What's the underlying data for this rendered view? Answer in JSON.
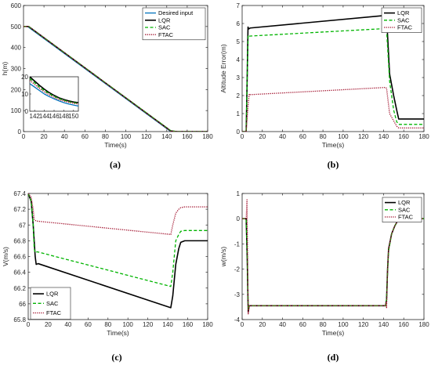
{
  "colors": {
    "desired": "#0072bd",
    "lqr": "#000000",
    "sac": "#00b400",
    "ftac": "#a2142f",
    "axis": "#262626"
  },
  "chart_data": [
    {
      "id": "a",
      "type": "line",
      "caption": "(a)",
      "xlabel": "Time(s)",
      "ylabel": "h(m)",
      "xlim": [
        0,
        180
      ],
      "ylim": [
        0,
        600
      ],
      "xticks": [
        0,
        20,
        40,
        60,
        80,
        100,
        120,
        140,
        160,
        180
      ],
      "yticks": [
        0,
        100,
        200,
        300,
        400,
        500,
        600
      ],
      "legend_position": "top-right",
      "series": [
        {
          "name": "Desired input",
          "style": "desired",
          "x": [
            0,
            4,
            144,
            147,
            180
          ],
          "y": [
            500,
            500,
            0,
            0,
            0
          ]
        },
        {
          "name": "LQR",
          "style": "lqr",
          "x": [
            0,
            5,
            144,
            150,
            180
          ],
          "y": [
            500,
            500,
            3,
            0,
            0
          ]
        },
        {
          "name": "SAC",
          "style": "sac",
          "x": [
            0,
            5,
            144,
            150,
            180
          ],
          "y": [
            500,
            500,
            4,
            0,
            0
          ]
        },
        {
          "name": "FTAC",
          "style": "ftac",
          "x": [
            0,
            5,
            144,
            150,
            180
          ],
          "y": [
            500,
            500,
            2,
            0,
            0
          ]
        }
      ],
      "inset": {
        "xlim": [
          141,
          151
        ],
        "ylim": [
          0,
          20
        ],
        "xticks": [
          142,
          144,
          146,
          148,
          150
        ],
        "yticks": [
          0,
          10,
          20
        ],
        "series": [
          {
            "style": "desired",
            "x": [
              141,
              142,
              143,
              144,
              145,
              146,
              147,
              148,
              149,
              150,
              151
            ],
            "y": [
              16,
              14,
              12,
              10,
              8.5,
              7.2,
              6,
              5,
              4.2,
              3.6,
              3
            ]
          },
          {
            "style": "lqr",
            "x": [
              141,
              142,
              143,
              144,
              145,
              146,
              147,
              148,
              149,
              150,
              151
            ],
            "y": [
              20,
              17.5,
              15,
              12.8,
              10.8,
              9.2,
              7.8,
              6.8,
              6,
              5.4,
              5
            ]
          },
          {
            "style": "sac",
            "x": [
              141,
              142,
              143,
              144,
              145,
              146,
              147,
              148,
              149,
              150,
              151
            ],
            "y": [
              19,
              16.5,
              14,
              12,
              10.2,
              8.7,
              7.4,
              6.4,
              5.6,
              5,
              4.6
            ]
          },
          {
            "style": "ftac",
            "x": [
              141,
              142,
              143,
              144,
              145,
              146,
              147,
              148,
              149,
              150,
              151
            ],
            "y": [
              18,
              15.5,
              13.2,
              11.2,
              9.5,
              8,
              6.8,
              5.9,
              5.2,
              4.6,
              4.2
            ]
          }
        ]
      }
    },
    {
      "id": "b",
      "type": "line",
      "caption": "(b)",
      "xlabel": "Time(s)",
      "ylabel": "Altitude Error(m)",
      "xlim": [
        0,
        180
      ],
      "ylim": [
        0,
        7
      ],
      "xticks": [
        0,
        20,
        40,
        60,
        80,
        100,
        120,
        140,
        160,
        180
      ],
      "yticks": [
        0,
        1,
        2,
        3,
        4,
        5,
        6,
        7
      ],
      "legend_position": "top-right",
      "series": [
        {
          "name": "LQR",
          "style": "lqr",
          "x": [
            0,
            4,
            5,
            5.8,
            6.5,
            8,
            142,
            143,
            146,
            150,
            153,
            155,
            180
          ],
          "y": [
            0,
            0,
            3,
            5.8,
            5.7,
            5.75,
            6.45,
            6.4,
            3.2,
            2,
            1.2,
            0.7,
            0.7
          ]
        },
        {
          "name": "SAC",
          "style": "sac",
          "x": [
            0,
            4,
            5,
            6,
            7,
            142,
            143,
            146,
            150,
            153,
            155,
            180
          ],
          "y": [
            0,
            0,
            3,
            5.35,
            5.3,
            5.72,
            5.65,
            2.8,
            1.2,
            0.55,
            0.4,
            0.4
          ]
        },
        {
          "name": "FTAC",
          "style": "ftac",
          "x": [
            0,
            4,
            6,
            7,
            8,
            142,
            143,
            146,
            150,
            153,
            155,
            180
          ],
          "y": [
            0,
            0,
            1.5,
            2.1,
            2.05,
            2.45,
            2.4,
            1.0,
            0.6,
            0.3,
            0.2,
            0.2
          ]
        }
      ]
    },
    {
      "id": "c",
      "type": "line",
      "caption": "(c)",
      "xlabel": "Time(s)",
      "ylabel": "V(m/s)",
      "xlim": [
        0,
        180
      ],
      "ylim": [
        65.8,
        67.4
      ],
      "xticks": [
        0,
        20,
        40,
        60,
        80,
        100,
        120,
        140,
        160,
        180
      ],
      "yticks": [
        65.8,
        66,
        66.2,
        66.4,
        66.6,
        66.8,
        67,
        67.2,
        67.4
      ],
      "ytick_labels": [
        "65.8",
        "66",
        "66.2",
        "66.4",
        "66.6",
        "66.8",
        "67",
        "67.2",
        "67.4"
      ],
      "legend_position": "bottom-left",
      "series": [
        {
          "name": "LQR",
          "style": "lqr",
          "x": [
            0,
            3,
            5,
            7,
            8,
            10,
            143,
            145,
            148,
            151,
            153,
            157,
            180
          ],
          "y": [
            67.4,
            67.3,
            67,
            66.6,
            66.5,
            66.51,
            65.95,
            66.1,
            66.5,
            66.7,
            66.78,
            66.8,
            66.8
          ]
        },
        {
          "name": "SAC",
          "style": "sac",
          "x": [
            0,
            3,
            5,
            6,
            7,
            9,
            143,
            145,
            148,
            151,
            153,
            157,
            180
          ],
          "y": [
            67.4,
            67.3,
            67,
            66.7,
            66.65,
            66.66,
            66.22,
            66.4,
            66.8,
            66.88,
            66.92,
            66.93,
            66.93
          ]
        },
        {
          "name": "FTAC",
          "style": "ftac",
          "x": [
            0,
            3,
            5,
            6,
            8,
            143,
            145,
            148,
            151,
            153,
            157,
            180
          ],
          "y": [
            67.4,
            67.35,
            67.2,
            67.07,
            67.05,
            66.88,
            67.0,
            67.15,
            67.2,
            67.22,
            67.23,
            67.23
          ]
        }
      ]
    },
    {
      "id": "d",
      "type": "line",
      "caption": "(d)",
      "xlabel": "Time(s)",
      "ylabel": "w(m/s)",
      "xlim": [
        0,
        180
      ],
      "ylim": [
        -4,
        1
      ],
      "xticks": [
        0,
        20,
        40,
        60,
        80,
        100,
        120,
        140,
        160,
        180
      ],
      "yticks": [
        -4,
        -3,
        -2,
        -1,
        0,
        1
      ],
      "legend_position": "top-right",
      "series": [
        {
          "name": "LQR",
          "style": "lqr",
          "x": [
            0,
            4,
            5,
            6,
            7,
            142,
            143,
            144,
            145,
            148,
            151,
            153,
            156,
            180
          ],
          "y": [
            0,
            0,
            -1.5,
            -3.7,
            -3.45,
            -3.45,
            -3.2,
            -2,
            -1.2,
            -0.6,
            -0.3,
            -0.15,
            0,
            0
          ]
        },
        {
          "name": "SAC",
          "style": "sac",
          "x": [
            0,
            4,
            5,
            6,
            7,
            142,
            143,
            144,
            145,
            148,
            151,
            153,
            156,
            180
          ],
          "y": [
            0,
            0,
            -1.4,
            -3.6,
            -3.45,
            -3.45,
            -3.2,
            -2.1,
            -1.3,
            -0.6,
            -0.3,
            -0.15,
            0,
            0
          ]
        },
        {
          "name": "FTAC",
          "style": "ftac",
          "x": [
            0,
            4,
            4.8,
            5.4,
            6,
            7,
            142,
            142.5,
            143,
            144,
            145,
            148,
            151,
            153,
            156,
            180
          ],
          "y": [
            0,
            0,
            0.75,
            -1.5,
            -3.8,
            -3.45,
            -3.45,
            -3.3,
            -3.55,
            -2,
            -1.2,
            -0.6,
            -0.3,
            -0.15,
            0,
            0
          ]
        }
      ]
    }
  ]
}
